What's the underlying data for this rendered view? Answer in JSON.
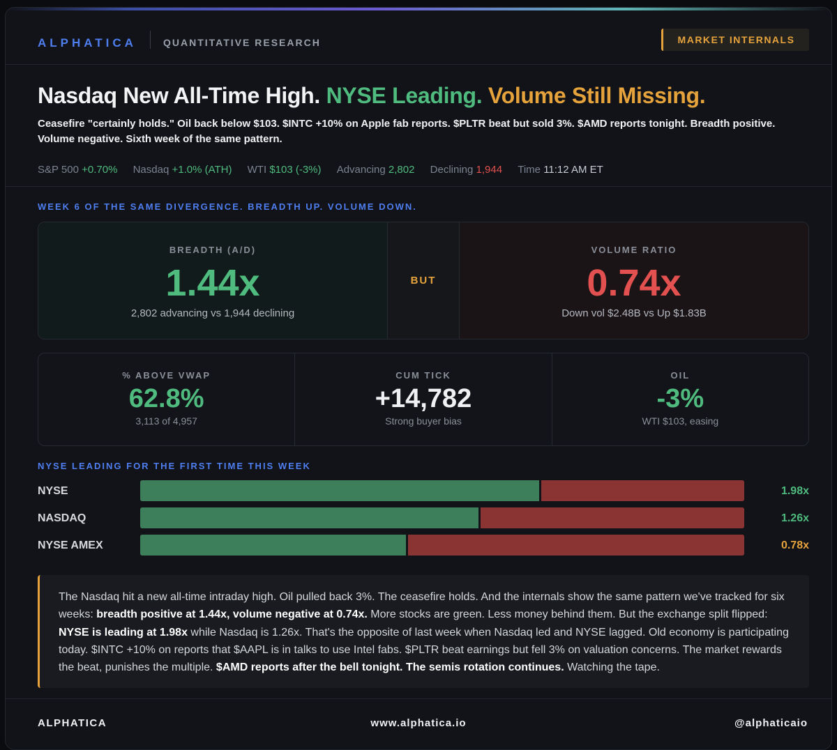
{
  "header": {
    "brand": "ALPHATICA",
    "subtitle": "QUANTITATIVE RESEARCH",
    "badge": "MARKET INTERNALS"
  },
  "headline": {
    "part1": "Nasdaq New All-Time High.",
    "part2": "NYSE Leading.",
    "part3": "Volume Still Missing."
  },
  "subheadline": "Ceasefire \"certainly holds.\" Oil back below $103. $INTC +10% on Apple fab reports. $PLTR beat but sold 3%. $AMD reports tonight. Breadth positive. Volume negative. Sixth week of the same pattern.",
  "stats": [
    {
      "label": "S&P 500",
      "value": "+0.70%",
      "tone": "green"
    },
    {
      "label": "Nasdaq",
      "value": "+1.0% (ATH)",
      "tone": "green"
    },
    {
      "label": "WTI",
      "value": "$103 (-3%)",
      "tone": "green"
    },
    {
      "label": "Advancing",
      "value": "2,802",
      "tone": "green"
    },
    {
      "label": "Declining",
      "value": "1,944",
      "tone": "red"
    },
    {
      "label": "Time",
      "value": "11:12 AM ET",
      "tone": "white"
    }
  ],
  "section1_title": "WEEK 6 OF THE SAME DIVERGENCE. BREADTH UP. VOLUME DOWN.",
  "breadth": {
    "label": "BREADTH (A/D)",
    "value": "1.44x",
    "note": "2,802 advancing vs 1,944 declining"
  },
  "but_label": "BUT",
  "volume": {
    "label": "VOLUME RATIO",
    "value": "0.74x",
    "note": "Down vol $2.48B vs Up $1.83B"
  },
  "metrics": [
    {
      "label": "% ABOVE VWAP",
      "value": "62.8%",
      "note": "3,113 of 4,957",
      "tone": "green"
    },
    {
      "label": "CUM TICK",
      "value": "+14,782",
      "note": "Strong buyer bias",
      "tone": "white"
    },
    {
      "label": "OIL",
      "value": "-3%",
      "note": "WTI $103, easing",
      "tone": "green"
    }
  ],
  "section2_title": "NYSE LEADING FOR THE FIRST TIME THIS WEEK",
  "exchanges": [
    {
      "name": "NYSE",
      "ratio": "1.98x",
      "advancing_share": 0.66,
      "tone": "green"
    },
    {
      "name": "NASDAQ",
      "ratio": "1.26x",
      "advancing_share": 0.56,
      "tone": "green"
    },
    {
      "name": "NYSE AMEX",
      "ratio": "0.78x",
      "advancing_share": 0.44,
      "tone": "orange"
    }
  ],
  "commentary": {
    "t1": "The Nasdaq hit a new all-time intraday high. Oil pulled back 3%. The ceasefire holds. And the internals show the same pattern we've tracked for six weeks: ",
    "b1": "breadth positive at 1.44x, volume negative at 0.74x.",
    "t2": " More stocks are green. Less money behind them. But the exchange split flipped: ",
    "b2": "NYSE is leading at 1.98x",
    "t3": " while Nasdaq is 1.26x. That's the opposite of last week when Nasdaq led and NYSE lagged. Old economy is participating today. $INTC +10% on reports that $AAPL is in talks to use Intel fabs. $PLTR beat earnings but fell 3% on valuation concerns. The market rewards the beat, punishes the multiple. ",
    "b3": "$AMD reports after the bell tonight. The semis rotation continues.",
    "t4": " Watching the tape."
  },
  "footer": {
    "brand": "ALPHATICA",
    "site": "www.alphatica.io",
    "handle": "@alphaticaio"
  },
  "colors": {
    "accent_blue": "#4f7ef0",
    "green": "#4fbb7e",
    "red": "#e2514f",
    "orange": "#e6a33c"
  }
}
